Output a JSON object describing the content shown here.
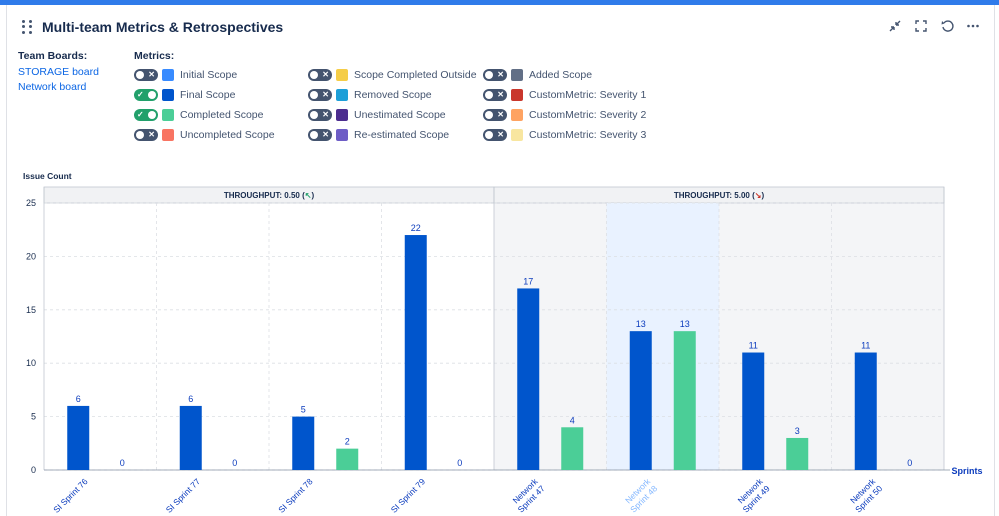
{
  "header": {
    "title": "Multi-team Metrics & Retrospectives"
  },
  "team_boards": {
    "label": "Team Boards:",
    "boards": [
      "STORAGE board",
      "Network board"
    ]
  },
  "metrics": {
    "label": "Metrics:",
    "items": [
      {
        "label": "Initial Scope",
        "on": false,
        "color": "#388bff"
      },
      {
        "label": "Scope Completed Outside",
        "on": false,
        "color": "#f5cd47"
      },
      {
        "label": "Added Scope",
        "on": false,
        "color": "#626f86"
      },
      {
        "label": "Final Scope",
        "on": true,
        "color": "#0055cc"
      },
      {
        "label": "Removed Scope",
        "on": false,
        "color": "#1d9fd8"
      },
      {
        "label": "CustomMetric: Severity 1",
        "on": false,
        "color": "#c9372c"
      },
      {
        "label": "Completed Scope",
        "on": true,
        "color": "#4bce97"
      },
      {
        "label": "Unestimated Scope",
        "on": false,
        "color": "#4c2d8f"
      },
      {
        "label": "CustomMetric: Severity 2",
        "on": false,
        "color": "#fea362"
      },
      {
        "label": "Uncompleted Scope",
        "on": false,
        "color": "#f87462"
      },
      {
        "label": "Re-estimated Scope",
        "on": false,
        "color": "#6e5dc6"
      },
      {
        "label": "CustomMetric: Severity 3",
        "on": false,
        "color": "#f8e6a0"
      }
    ]
  },
  "chart_data": {
    "type": "bar",
    "ylabel": "Issue Count",
    "xlabel": "Sprints",
    "ylim": [
      0,
      25
    ],
    "yticks": [
      0,
      5,
      10,
      15,
      20,
      25
    ],
    "grid": true,
    "categories": [
      "SI Sprint 76",
      "SI Sprint 77",
      "SI Sprint 78",
      "SI Sprint 79",
      "Network Sprint 47",
      "Network Sprint 48",
      "Network Sprint 49",
      "Network Sprint 50"
    ],
    "highlighted_category": "Network Sprint 48",
    "groups": [
      {
        "label": "THROUGHPUT: 0.50",
        "trend": "↖",
        "trend_color": "#22a06b",
        "categories": [
          0,
          3
        ]
      },
      {
        "label": "THROUGHPUT: 5.00",
        "trend": "↘",
        "trend_color": "#c9372c",
        "categories": [
          4,
          7
        ]
      }
    ],
    "series": [
      {
        "values": [
          6,
          6,
          5,
          22,
          17,
          13,
          11,
          11
        ],
        "color": "#0055cc"
      },
      {
        "values": [
          0,
          0,
          2,
          0,
          4,
          13,
          3,
          0
        ],
        "color": "#4bce97"
      }
    ]
  }
}
